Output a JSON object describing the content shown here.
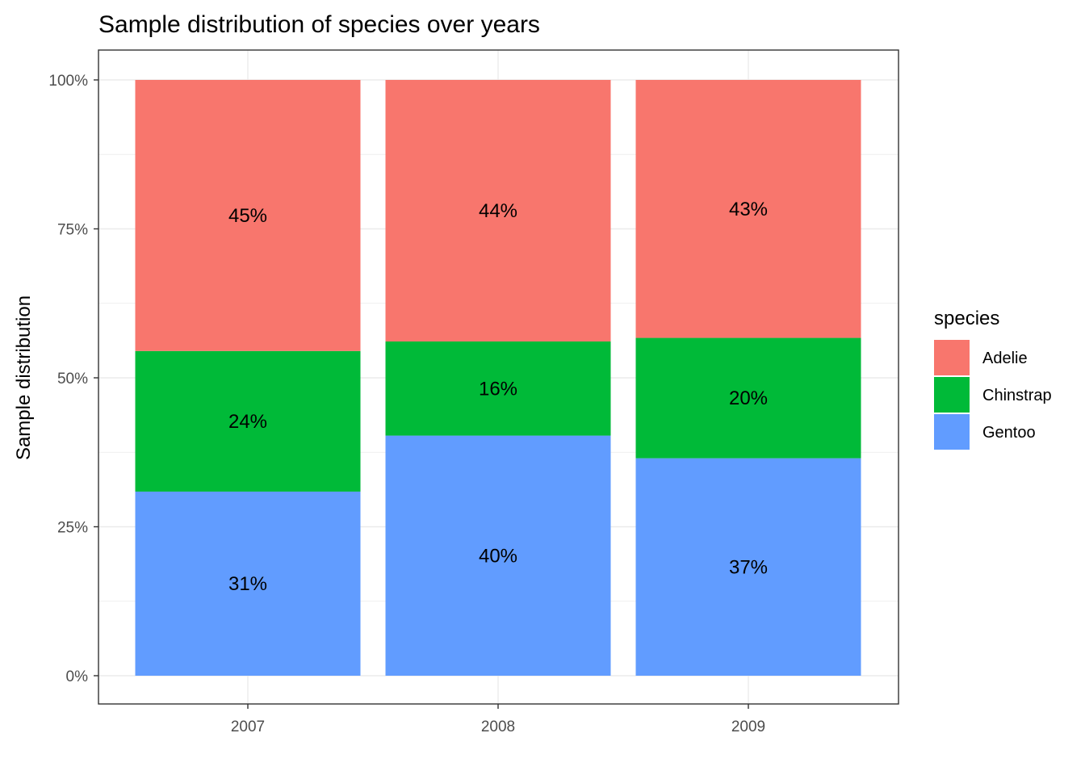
{
  "chart_data": {
    "type": "bar",
    "stacked": true,
    "title": "Sample distribution of species over years",
    "xlabel": "",
    "ylabel": "Sample distribution",
    "categories": [
      "2007",
      "2008",
      "2009"
    ],
    "ylim": [
      0,
      100
    ],
    "y_unit": "%",
    "yticks": [
      0,
      25,
      50,
      75,
      100
    ],
    "ytick_labels": [
      "0%",
      "25%",
      "50%",
      "75%",
      "100%"
    ],
    "grid": true,
    "legend": {
      "title": "species",
      "position": "right"
    },
    "series": [
      {
        "name": "Adelie",
        "color": "#F8766D",
        "values": [
          45.5,
          43.9,
          43.3
        ],
        "labels": [
          "45%",
          "44%",
          "43%"
        ]
      },
      {
        "name": "Chinstrap",
        "color": "#00BA38",
        "values": [
          23.6,
          15.8,
          20.2
        ],
        "labels": [
          "24%",
          "16%",
          "20%"
        ]
      },
      {
        "name": "Gentoo",
        "color": "#619CFF",
        "values": [
          30.9,
          40.3,
          36.5
        ],
        "labels": [
          "31%",
          "40%",
          "37%"
        ]
      }
    ]
  }
}
